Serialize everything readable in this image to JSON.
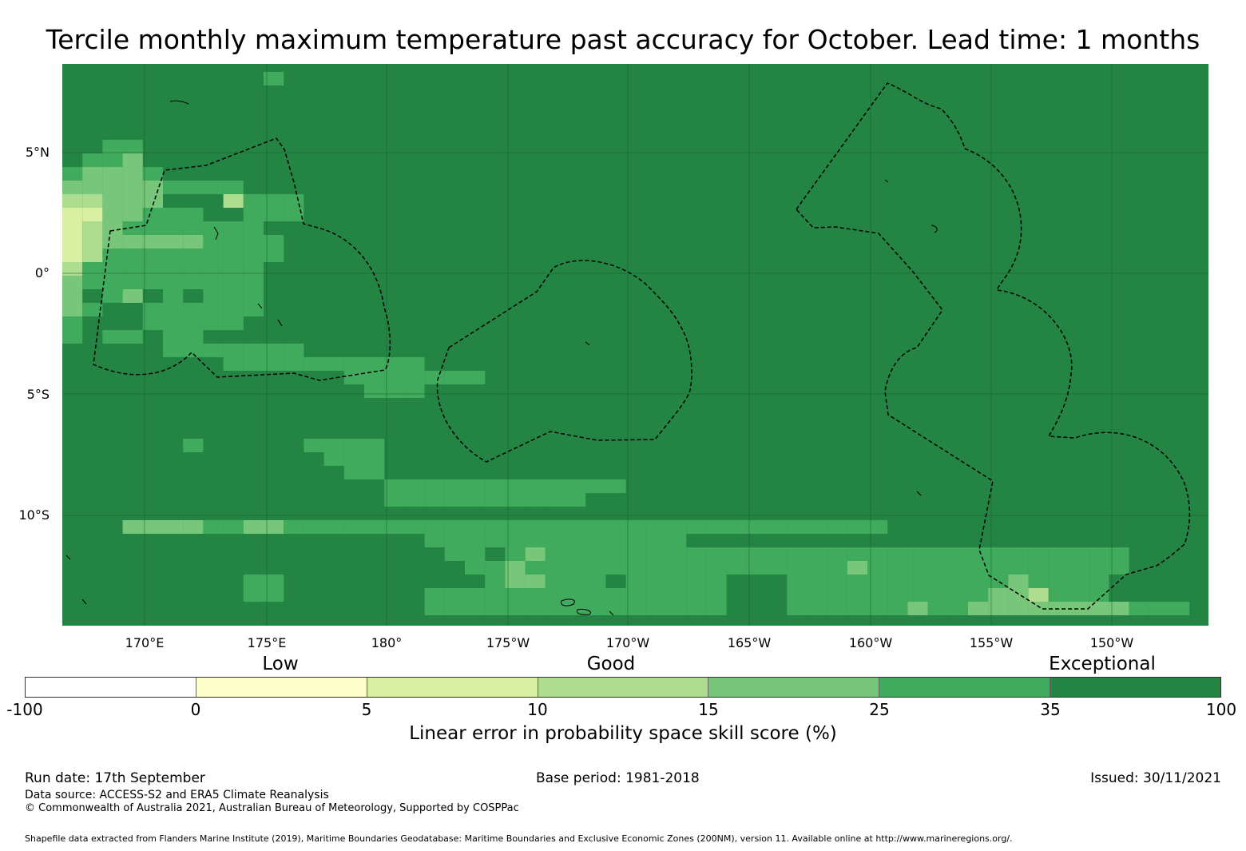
{
  "title": "Tercile monthly maximum temperature past accuracy for October. Lead time: 1 months",
  "map": {
    "latitude_labels": [
      "5°N",
      "0°",
      "5°S",
      "10°S"
    ],
    "longitude_labels": [
      "170°E",
      "175°E",
      "180°",
      "175°W",
      "170°W",
      "165°W",
      "160°W",
      "155°W",
      "150°W"
    ],
    "background_color": "#238443"
  },
  "colorbar": {
    "categories": [
      "Low",
      "Good",
      "Exceptional"
    ],
    "tick_labels": [
      "-100",
      "0",
      "5",
      "10",
      "15",
      "25",
      "35",
      "100"
    ],
    "colors": [
      "#ffffff",
      "#ffffcc",
      "#d9f0a3",
      "#addd8e",
      "#78c679",
      "#41ab5d",
      "#238443"
    ],
    "label": "Linear error in probability space skill score (%)"
  },
  "footer": {
    "run_date": "Run date: 17th September",
    "base_period": "Base period: 1981-2018",
    "issued": "Issued: 30/11/2021",
    "data_source": "Data source: ACCESS-S2 and ERA5 Climate Reanalysis",
    "copyright": "© Commonwealth of Australia 2021, Australian Bureau of Meteorology, Supported by COSPPac",
    "shapefile": "Shapefile data extracted from Flanders Marine Institute (2019), Maritime Boundaries Geodatabase: Maritime Boundaries and Exclusive Economic Zones (200NM), version 11. Available online at http://www.marineregions.org/."
  }
}
